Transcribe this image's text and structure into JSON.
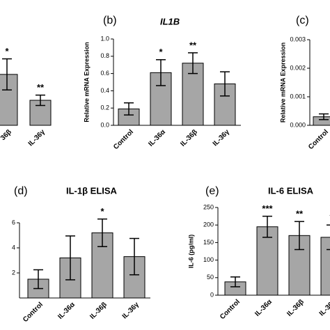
{
  "chart_data": [
    {
      "type": "bar",
      "color": "#a6a6a6",
      "categories": [
        "36β",
        "IL-36γ"
      ],
      "values": [
        0.59,
        0.29
      ],
      "errors": [
        0.18,
        0.06
      ],
      "annotations": [
        "*",
        "**"
      ],
      "ylim": [
        0,
        1.0
      ]
    },
    {
      "type": "bar",
      "panel": "(b)",
      "title": "IL1B",
      "y_label": "Relative mRNA Expression",
      "color": "#a6a6a6",
      "categories": [
        "Control",
        "IL-36α",
        "IL-36β",
        "IL-36γ"
      ],
      "values": [
        0.19,
        0.61,
        0.72,
        0.48
      ],
      "errors": [
        0.07,
        0.15,
        0.12,
        0.14
      ],
      "annotations": [
        null,
        "*",
        "**",
        null
      ],
      "ylim": [
        0,
        1.0
      ],
      "yticks": [
        {
          "value": 0,
          "label": "0.0"
        },
        {
          "value": 0.2,
          "label": "0.2"
        },
        {
          "value": 0.4,
          "label": "0.4"
        },
        {
          "value": 0.6,
          "label": "0.6"
        },
        {
          "value": 0.8,
          "label": "0.8"
        },
        {
          "value": 1.0,
          "label": "1.0"
        }
      ]
    },
    {
      "type": "bar",
      "panel": "(c)",
      "y_label": "Relative mRNA Expression",
      "color": "#a6a6a6",
      "categories": [
        "Control"
      ],
      "values": [
        0.0003
      ],
      "errors": [
        0.0001
      ],
      "ylim": [
        0,
        0.003
      ],
      "yticks": [
        {
          "value": 0,
          "label": "0.000"
        },
        {
          "value": 0.001,
          "label": "0.001"
        },
        {
          "value": 0.002,
          "label": "0.002"
        },
        {
          "value": 0.003,
          "label": "0.003"
        }
      ]
    },
    {
      "type": "bar",
      "panel": "(d)",
      "title": "IL-1β ELISA",
      "y_label": "IL-1β (pg/ml)",
      "color": "#a6a6a6",
      "categories": [
        "Control",
        "IL-36α",
        "IL-36β",
        "IL-36γ"
      ],
      "values": [
        1.5,
        3.2,
        5.2,
        3.3
      ],
      "errors": [
        0.75,
        1.75,
        1.1,
        1.45
      ],
      "annotations": [
        null,
        null,
        "*",
        null
      ],
      "ylim": [
        0,
        6
      ],
      "yticks": [
        2,
        4,
        6
      ]
    },
    {
      "type": "bar",
      "panel": "(e)",
      "title": "IL-6 ELISA",
      "y_label": "IL-6 (pg/ml)",
      "color": "#a6a6a6",
      "categories": [
        "Control",
        "IL-36α",
        "IL-36β",
        "IL-36γ"
      ],
      "values": [
        38,
        195,
        170,
        165
      ],
      "errors": [
        14,
        30,
        40,
        35
      ],
      "annotations": [
        null,
        "***",
        "**",
        "*"
      ],
      "ylim": [
        0,
        250
      ],
      "yticks": [
        0,
        50,
        100,
        150,
        200,
        250
      ]
    }
  ]
}
